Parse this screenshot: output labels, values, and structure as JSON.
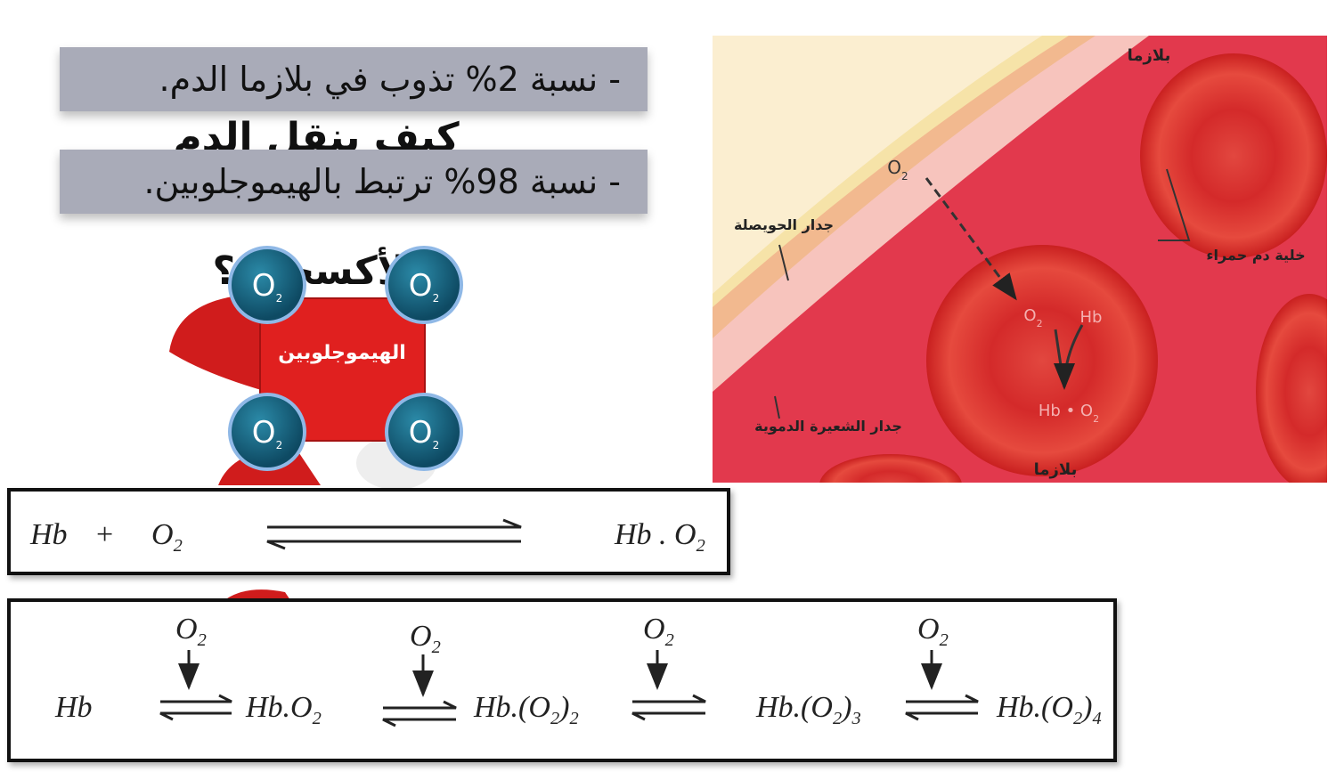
{
  "slide": {
    "background_title": "كيف ينقل الدم الأكسجين؟",
    "bullets": [
      "- نسبة 2% تذوب في بلازما الدم.",
      "- نسبة 98% ترتبط بالهيموجلوبين."
    ],
    "molecule": {
      "center": "الهيموجلوبين",
      "oxygen": [
        [
          "O",
          "2"
        ],
        [
          "O",
          "2"
        ],
        [
          "O",
          "2"
        ],
        [
          "O",
          "2"
        ]
      ]
    },
    "illustration": {
      "plasma_top": "بلازما",
      "oxygen": [
        "O",
        "2"
      ],
      "alveolus_wall": "جدار الحويصلة",
      "red_blood_cell": "خلية دم حمراء",
      "cell_oxygen": [
        "O",
        "2"
      ],
      "cell_hb": "Hb",
      "cell_product": [
        "Hb • O",
        "2"
      ],
      "capillary_wall": "جدار الشعيرة الدموية",
      "plasma_bottom": "بلازما"
    },
    "equation1": {
      "reactant": "Hb",
      "plus": "+",
      "oxygen": [
        "O",
        "2"
      ],
      "product": [
        "Hb . O",
        "2"
      ]
    },
    "equation2": {
      "reactant": "Hb",
      "oxygen": [
        [
          "O",
          "2"
        ],
        [
          "O",
          "2"
        ],
        [
          "O",
          "2"
        ],
        [
          "O",
          "2"
        ]
      ],
      "products": [
        [
          "Hb.O",
          "2"
        ],
        [
          "Hb.(O",
          "2",
          ")",
          "2"
        ],
        [
          "Hb.(O",
          "2",
          ")",
          "3"
        ],
        [
          "Hb.(O",
          "2",
          ")",
          "4"
        ]
      ]
    }
  }
}
